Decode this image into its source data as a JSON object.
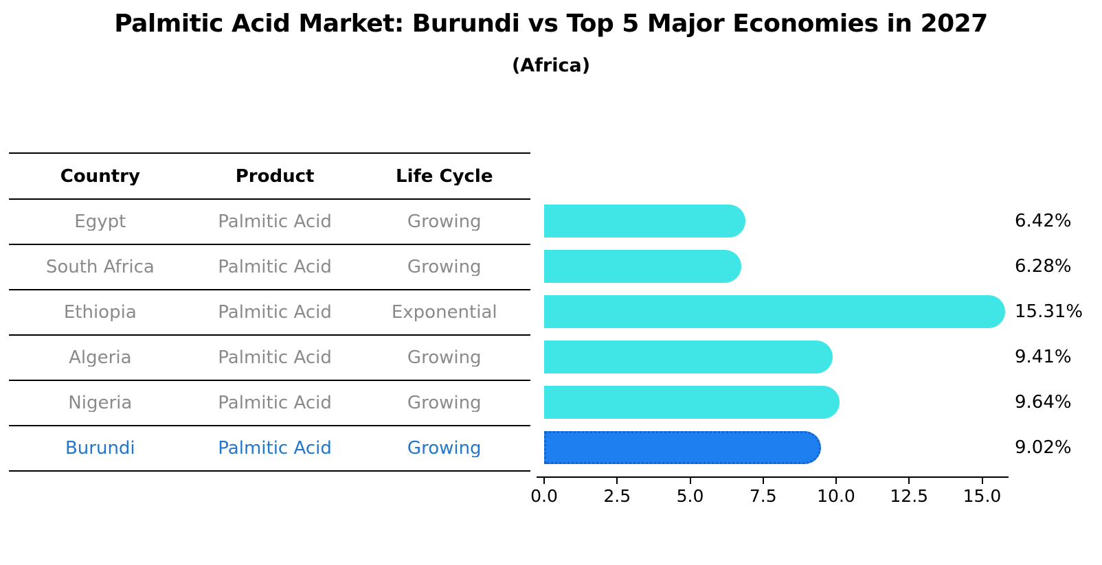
{
  "chart_data": {
    "type": "bar",
    "orientation": "horizontal",
    "title": "Palmitic Acid Market: Burundi vs Top 5 Major Economies in 2027",
    "subtitle": "(Africa)",
    "categories": [
      "Egypt",
      "South Africa",
      "Ethiopia",
      "Algeria",
      "Nigeria",
      "Burundi"
    ],
    "values": [
      6.42,
      6.28,
      15.31,
      9.41,
      9.64,
      9.02
    ],
    "value_labels": [
      "6.42%",
      "6.28%",
      "15.31%",
      "9.41%",
      "9.64%",
      "9.02%"
    ],
    "highlight_index": 5,
    "xlabel": "",
    "ylabel": "",
    "xlim": [
      0,
      16
    ],
    "xticks": [
      "0.0",
      "2.5",
      "5.0",
      "7.5",
      "10.0",
      "12.5",
      "15.0"
    ],
    "grid": false,
    "legend": false
  },
  "table": {
    "headers": [
      "Country",
      "Product",
      "Life Cycle"
    ],
    "rows": [
      {
        "country": "Egypt",
        "product": "Palmitic Acid",
        "life_cycle": "Growing"
      },
      {
        "country": "South Africa",
        "product": "Palmitic Acid",
        "life_cycle": "Growing"
      },
      {
        "country": "Ethiopia",
        "product": "Palmitic Acid",
        "life_cycle": "Exponential"
      },
      {
        "country": "Algeria",
        "product": "Palmitic Acid",
        "life_cycle": "Growing"
      },
      {
        "country": "Nigeria",
        "product": "Palmitic Acid",
        "life_cycle": "Growing"
      },
      {
        "country": "Burundi",
        "product": "Palmitic Acid",
        "life_cycle": "Growing"
      }
    ],
    "highlight_row_index": 5
  },
  "colors": {
    "bar": "#40E5E5",
    "highlight_bar": "#1E80F0",
    "highlight_bar_border": "#1563C8",
    "table_text": "#8a8a8a",
    "highlight_text": "#2277CC",
    "axis": "#000000",
    "text": "#000000"
  }
}
